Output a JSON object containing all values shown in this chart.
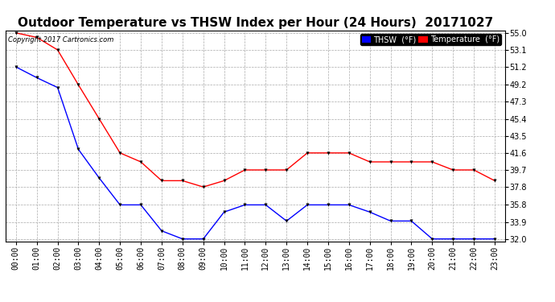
{
  "title": "Outdoor Temperature vs THSW Index per Hour (24 Hours)  20171027",
  "copyright": "Copyright 2017 Cartronics.com",
  "background_color": "#ffffff",
  "plot_bg_color": "#ffffff",
  "grid_color": "#aaaaaa",
  "hours": [
    "00:00",
    "01:00",
    "02:00",
    "03:00",
    "04:00",
    "05:00",
    "06:00",
    "07:00",
    "08:00",
    "09:00",
    "10:00",
    "11:00",
    "12:00",
    "13:00",
    "14:00",
    "15:00",
    "16:00",
    "17:00",
    "18:00",
    "19:00",
    "20:00",
    "21:00",
    "22:00",
    "23:00"
  ],
  "thsw": [
    51.2,
    50.0,
    48.9,
    42.0,
    38.8,
    35.8,
    35.8,
    32.9,
    32.0,
    32.0,
    35.0,
    35.8,
    35.8,
    34.0,
    35.8,
    35.8,
    35.8,
    35.0,
    34.0,
    34.0,
    32.0,
    32.0,
    32.0,
    32.0
  ],
  "temperature": [
    55.0,
    54.5,
    53.1,
    49.2,
    45.4,
    41.6,
    40.6,
    38.5,
    38.5,
    37.8,
    38.5,
    39.7,
    39.7,
    39.7,
    41.6,
    41.6,
    41.6,
    40.6,
    40.6,
    40.6,
    40.6,
    39.7,
    39.7,
    38.5
  ],
  "thsw_color": "#0000ff",
  "temp_color": "#ff0000",
  "ylim_min": 32.0,
  "ylim_max": 55.0,
  "yticks": [
    32.0,
    33.9,
    35.8,
    37.8,
    39.7,
    41.6,
    43.5,
    45.4,
    47.3,
    49.2,
    51.2,
    53.1,
    55.0
  ],
  "title_fontsize": 11,
  "copyright_fontsize": 6,
  "tick_fontsize": 7,
  "legend_thsw_bg": "#0000ff",
  "legend_temp_bg": "#ff0000"
}
